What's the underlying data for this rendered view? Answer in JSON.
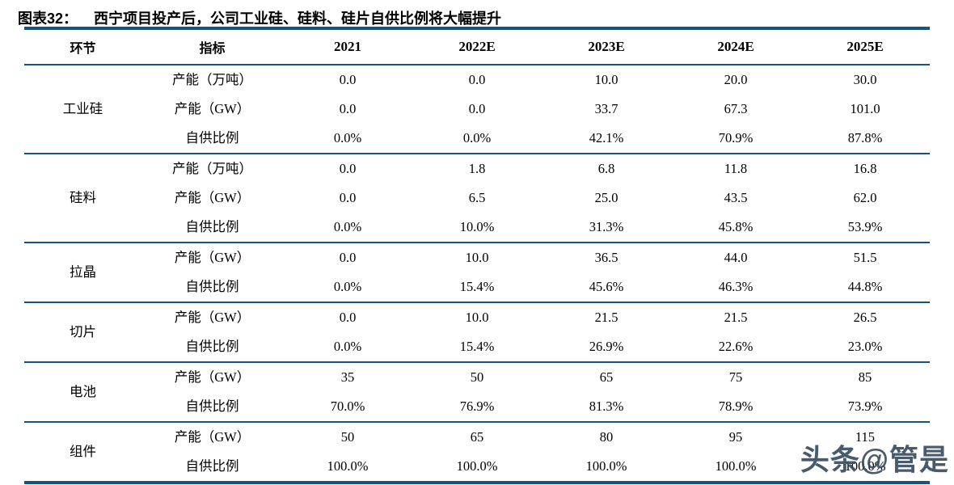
{
  "title": {
    "prefix": "图表32：",
    "text": "西宁项目投产后，公司工业硅、硅料、硅片自供比例将大幅提升"
  },
  "table": {
    "headers": [
      "环节",
      "指标",
      "2021",
      "2022E",
      "2023E",
      "2024E",
      "2025E"
    ],
    "groups": [
      {
        "name": "工业硅",
        "rows": [
          {
            "indicator": "产能（万吨）",
            "values": [
              "0.0",
              "0.0",
              "10.0",
              "20.0",
              "30.0"
            ]
          },
          {
            "indicator": "产能（GW）",
            "values": [
              "0.0",
              "0.0",
              "33.7",
              "67.3",
              "101.0"
            ]
          },
          {
            "indicator": "自供比例",
            "values": [
              "0.0%",
              "0.0%",
              "42.1%",
              "70.9%",
              "87.8%"
            ]
          }
        ]
      },
      {
        "name": "硅料",
        "rows": [
          {
            "indicator": "产能（万吨）",
            "values": [
              "0.0",
              "1.8",
              "6.8",
              "11.8",
              "16.8"
            ]
          },
          {
            "indicator": "产能（GW）",
            "values": [
              "0.0",
              "6.5",
              "25.0",
              "43.5",
              "62.0"
            ]
          },
          {
            "indicator": "自供比例",
            "values": [
              "0.0%",
              "10.0%",
              "31.3%",
              "45.8%",
              "53.9%"
            ]
          }
        ]
      },
      {
        "name": "拉晶",
        "rows": [
          {
            "indicator": "产能（GW）",
            "values": [
              "0.0",
              "10.0",
              "36.5",
              "44.0",
              "51.5"
            ]
          },
          {
            "indicator": "自供比例",
            "values": [
              "0.0%",
              "15.4%",
              "45.6%",
              "46.3%",
              "44.8%"
            ]
          }
        ]
      },
      {
        "name": "切片",
        "rows": [
          {
            "indicator": "产能（GW）",
            "values": [
              "0.0",
              "10.0",
              "21.5",
              "21.5",
              "26.5"
            ]
          },
          {
            "indicator": "自供比例",
            "values": [
              "0.0%",
              "15.4%",
              "26.9%",
              "22.6%",
              "23.0%"
            ]
          }
        ]
      },
      {
        "name": "电池",
        "rows": [
          {
            "indicator": "产能（GW）",
            "values": [
              "35",
              "50",
              "65",
              "75",
              "85"
            ]
          },
          {
            "indicator": "自供比例",
            "values": [
              "70.0%",
              "76.9%",
              "81.3%",
              "78.9%",
              "73.9%"
            ]
          }
        ]
      },
      {
        "name": "组件",
        "rows": [
          {
            "indicator": "产能（GW）",
            "values": [
              "50",
              "65",
              "80",
              "95",
              "115"
            ]
          },
          {
            "indicator": "自供比例",
            "values": [
              "100.0%",
              "100.0%",
              "100.0%",
              "100.0%",
              "100.0%"
            ]
          }
        ]
      }
    ]
  },
  "watermark": "头条@管是",
  "colors": {
    "rule": "#16537E",
    "title_text": "#000000",
    "watermark": "#3b4f63"
  }
}
